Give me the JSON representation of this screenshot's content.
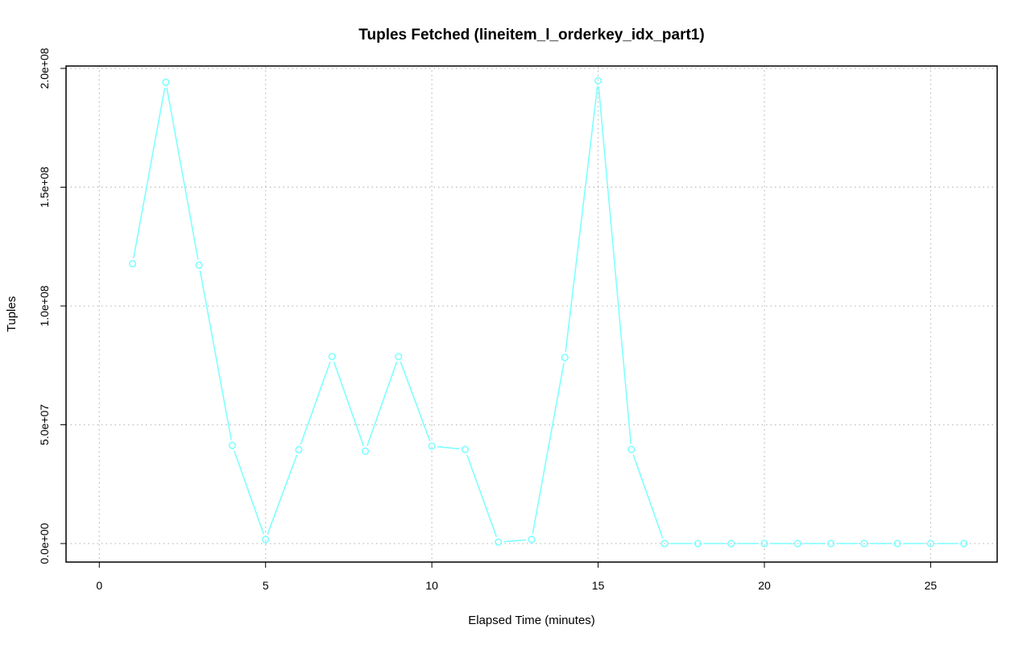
{
  "chart_data": {
    "type": "line",
    "title": "Tuples Fetched (lineitem_l_orderkey_idx_part1)",
    "xlabel": "Elapsed Time (minutes)",
    "ylabel": "Tuples",
    "xlim": [
      -1,
      27
    ],
    "ylim": [
      -7800000,
      201000000
    ],
    "grid": true,
    "x_ticks": [
      0,
      5,
      10,
      15,
      20,
      25
    ],
    "x_tick_labels": [
      "0",
      "5",
      "10",
      "15",
      "20",
      "25"
    ],
    "y_ticks": [
      0,
      50000000,
      100000000,
      150000000,
      200000000
    ],
    "y_tick_labels": [
      "0.0e+00",
      "5.0e+07",
      "1.0e+08",
      "1.5e+08",
      "2.0e+08"
    ],
    "colors": {
      "series": "#7FFFFF",
      "grid": "#BEBEBE",
      "axes": "#000000"
    },
    "series": [
      {
        "x": [
          1,
          2,
          3,
          4,
          5,
          6,
          7,
          8,
          9,
          10,
          11,
          12,
          13,
          14,
          15,
          16,
          17,
          18,
          19,
          20,
          21,
          22,
          23,
          24,
          25,
          26
        ],
        "values": [
          117800000,
          194200000,
          117200000,
          41300000,
          1700000,
          39500000,
          78700000,
          38900000,
          78700000,
          41000000,
          39600000,
          600000,
          1700000,
          78300000,
          194800000,
          39600000,
          0,
          0,
          0,
          0,
          0,
          0,
          0,
          0,
          0,
          0
        ]
      }
    ]
  }
}
